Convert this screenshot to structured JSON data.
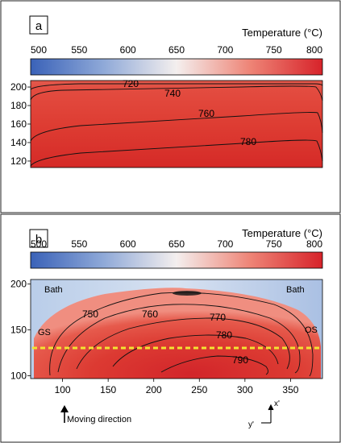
{
  "panels": [
    {
      "label": "a",
      "colorbar": {
        "title": "Temperature (°C)",
        "ticks": [
          "500",
          "550",
          "600",
          "650",
          "700",
          "750",
          "800"
        ]
      },
      "yticks": [
        "200",
        "180",
        "160",
        "140",
        "120"
      ],
      "contour_labels": [
        "720",
        "740",
        "760",
        "780"
      ]
    },
    {
      "label": "b",
      "colorbar": {
        "title": "Temperature (°C)",
        "ticks": [
          "500",
          "550",
          "600",
          "650",
          "700",
          "750",
          "800"
        ]
      },
      "yticks": [
        "200",
        "150",
        "100"
      ],
      "xticks": [
        "100",
        "150",
        "200",
        "250",
        "300",
        "350"
      ],
      "contour_labels": [
        "750",
        "760",
        "770",
        "780",
        "790"
      ],
      "region_labels": {
        "bath_left": "Bath",
        "bath_right": "Bath",
        "gs": "GS",
        "os": "OS"
      },
      "moving_direction": "Moving direction",
      "axis_x": "x'",
      "axis_y": "y'"
    }
  ],
  "chart_data": [
    {
      "type": "heatmap",
      "panel": "a",
      "colorbar_title": "Temperature (°C)",
      "colorbar_range": [
        500,
        800
      ],
      "colormap": [
        "#3a62b8",
        "#f5f0ee",
        "#d8232a"
      ],
      "ylim": [
        113,
        207
      ],
      "xlim": [
        0,
        1
      ],
      "contours": [
        {
          "level": 720,
          "y": 203
        },
        {
          "level": 740,
          "y": 196
        },
        {
          "level": 760,
          "y": 167
        },
        {
          "level": 780,
          "y": 137
        }
      ]
    },
    {
      "type": "heatmap",
      "panel": "b",
      "colorbar_title": "Temperature (°C)",
      "colorbar_range": [
        500,
        800
      ],
      "colormap": [
        "#3a62b8",
        "#f5f0ee",
        "#d8232a"
      ],
      "xlim": [
        65,
        385
      ],
      "ylim": [
        97,
        205
      ],
      "contours": [
        {
          "level": 750,
          "label_at": [
            105,
            156
          ]
        },
        {
          "level": 760,
          "label_at": [
            200,
            155
          ]
        },
        {
          "level": 770,
          "label_at": [
            270,
            157
          ]
        },
        {
          "level": 780,
          "label_at": [
            285,
            137
          ]
        },
        {
          "level": 790,
          "label_at": [
            305,
            113
          ]
        }
      ],
      "dashed_line_y": 130
    }
  ]
}
